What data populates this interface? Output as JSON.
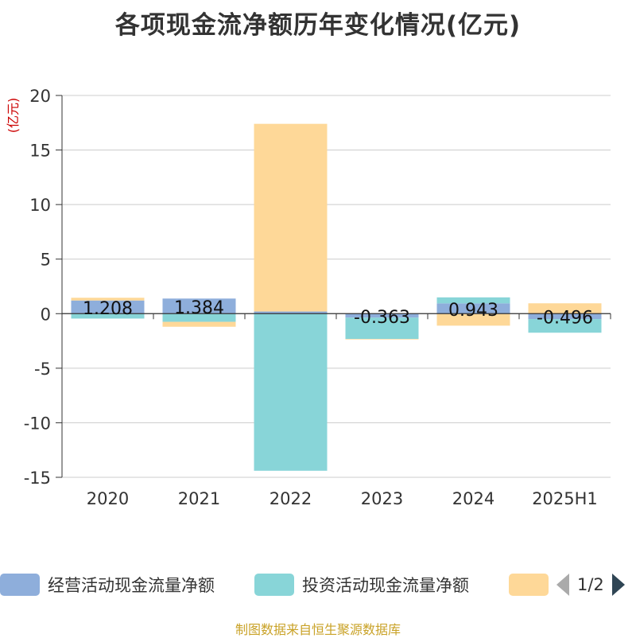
{
  "title": "各项现金流净额历年变化情况(亿元)",
  "source": "制图数据来自恒生聚源数据库",
  "pager": {
    "text": "1/2"
  },
  "chart_data": {
    "type": "bar",
    "stacked": true,
    "ylabel": "(亿元)",
    "ylim": [
      -15,
      20
    ],
    "yticks": [
      20,
      15,
      10,
      5,
      0,
      -5,
      -10,
      -15
    ],
    "grid": true,
    "legend_position": "bottom",
    "categories": [
      "2020",
      "2021",
      "2022",
      "2023",
      "2024",
      "2025H1"
    ],
    "series": [
      {
        "name": "经营活动现金流量净额",
        "color": "#8eaedb",
        "values": [
          1.208,
          1.384,
          0.2,
          -0.363,
          0.943,
          -0.496
        ],
        "labels": [
          "1.208",
          "1.384",
          "",
          "-0.363",
          "0.943",
          "-0.496"
        ]
      },
      {
        "name": "投资活动现金流量净额",
        "color": "#88d5d8",
        "values": [
          -0.45,
          -0.75,
          -14.4,
          -1.95,
          0.55,
          -1.25
        ],
        "labels": []
      },
      {
        "name": "",
        "color": "#fed898",
        "values": [
          0.25,
          -0.45,
          17.2,
          -0.05,
          -1.1,
          0.95
        ],
        "labels": []
      }
    ]
  }
}
